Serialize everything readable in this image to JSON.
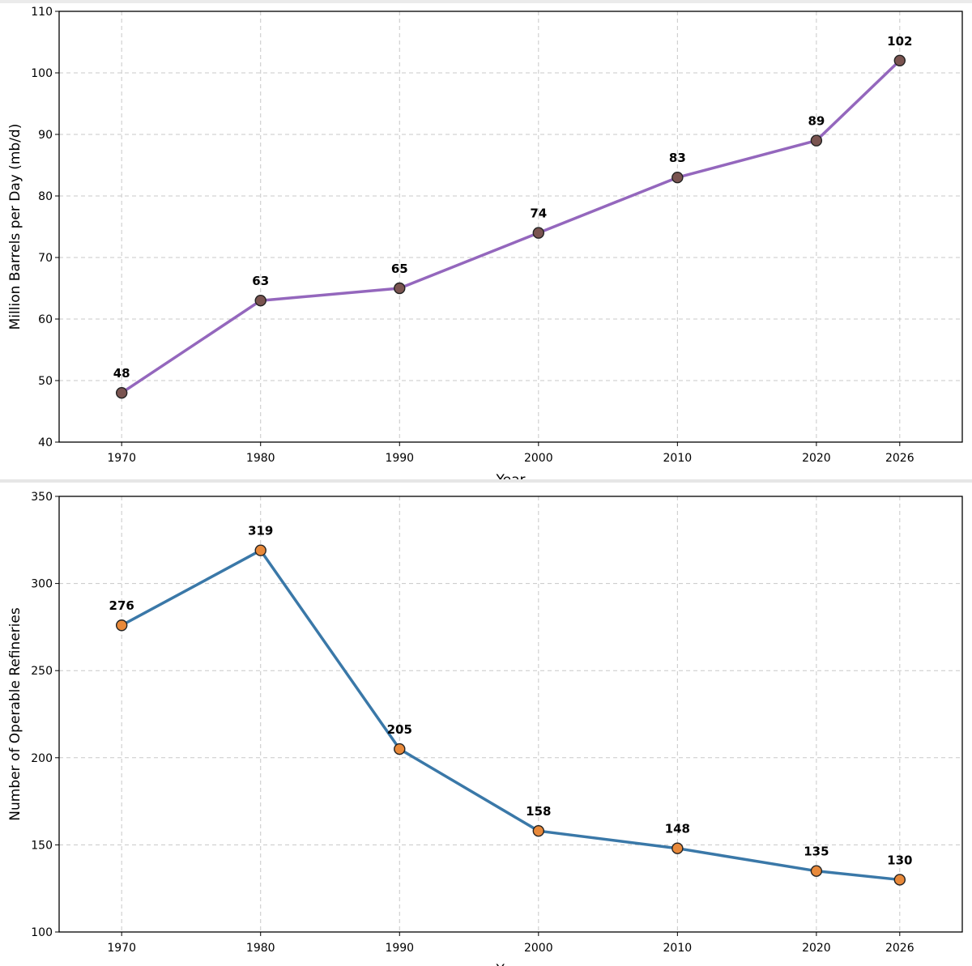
{
  "chart_data": [
    {
      "type": "line",
      "title": "",
      "xlabel": "Year",
      "ylabel": "Million Barrels per Day (mb/d)",
      "x": [
        1970,
        1980,
        1990,
        2000,
        2010,
        2020,
        2026
      ],
      "xticks": [
        "1970",
        "1980",
        "1990",
        "2000",
        "2010",
        "2020",
        "2026"
      ],
      "xlim": [
        1965.5,
        2030.5
      ],
      "ylim": [
        40,
        110
      ],
      "yticks": [
        40,
        50,
        60,
        70,
        80,
        90,
        100,
        110
      ],
      "grid": true,
      "line_color": "#9467bd",
      "marker_color": "#7a5450",
      "series": [
        {
          "values": [
            48,
            63,
            65,
            74,
            83,
            89,
            102
          ]
        }
      ],
      "data_labels": [
        "48",
        "63",
        "65",
        "74",
        "83",
        "89",
        "102"
      ]
    },
    {
      "type": "line",
      "title": "",
      "xlabel": "Year",
      "ylabel": "Number of Operable Refineries",
      "x": [
        1970,
        1980,
        1990,
        2000,
        2010,
        2020,
        2026
      ],
      "xticks": [
        "1970",
        "1980",
        "1990",
        "2000",
        "2010",
        "2020",
        "2026"
      ],
      "xlim": [
        1965.5,
        2030.5
      ],
      "ylim": [
        100,
        350
      ],
      "yticks": [
        100,
        150,
        200,
        250,
        300,
        350
      ],
      "grid": true,
      "line_color": "#3a78a8",
      "marker_color": "#e8893a",
      "series": [
        {
          "values": [
            276,
            319,
            205,
            158,
            148,
            135,
            130
          ]
        }
      ],
      "data_labels": [
        "276",
        "319",
        "205",
        "158",
        "148",
        "135",
        "130"
      ]
    }
  ]
}
